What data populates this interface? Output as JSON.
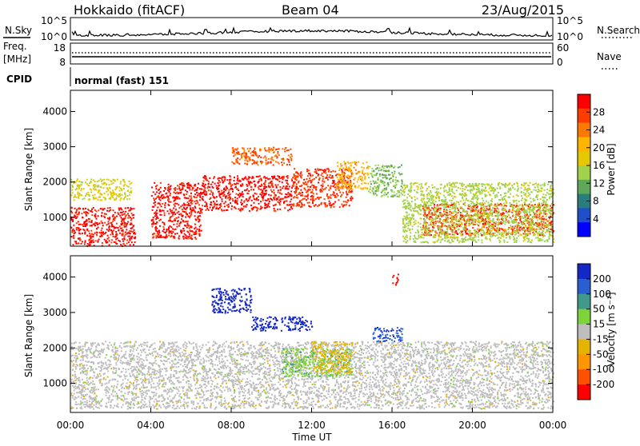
{
  "header": {
    "station": "Hokkaido (fitACF)",
    "beam": "Beam 04",
    "date": "23/Aug/2015"
  },
  "top_panels": {
    "nsky_label": "N.Sky",
    "nsky_ticks": [
      "10^5",
      "10^0"
    ],
    "nsearch_label": "N.Search",
    "nsearch_ticks": [
      "10^5",
      "10^0"
    ],
    "freq_label": "Freq.",
    "freq_unit": "[MHz]",
    "freq_ticks": [
      "18",
      "8"
    ],
    "nave_label": "Nave",
    "nave_ticks": [
      "60",
      "0"
    ],
    "cpid_label": "CPID",
    "cpid_value": "normal (fast) 151"
  },
  "power_colorbar": {
    "label": "Power [dB]",
    "ticks": [
      "28",
      "24",
      "20",
      "16",
      "12",
      "8",
      "4"
    ],
    "colors": [
      "#ff0000",
      "#ff3c00",
      "#ff7800",
      "#ffb400",
      "#e6c800",
      "#a0d24e",
      "#5fa85a",
      "#2a7d7d",
      "#1e4fc8",
      "#0000ff"
    ]
  },
  "velocity_colorbar": {
    "label": "Velocity [m s⁻¹]",
    "ticks": [
      "200",
      "100",
      "50",
      "15",
      "-15",
      "-50",
      "-100",
      "-200"
    ],
    "colors": [
      "#1428c8",
      "#2a5fd0",
      "#3f9a8c",
      "#7ed23a",
      "#bebebe",
      "#e6b400",
      "#ff9600",
      "#ff5000",
      "#ff0000"
    ]
  },
  "axes": {
    "xlabel": "Time UT",
    "xticks": [
      "00:00",
      "04:00",
      "08:00",
      "12:00",
      "16:00",
      "20:00",
      "00:00"
    ],
    "ylabel": "Slant Range [km]",
    "yticks": [
      "4000",
      "3000",
      "2000",
      "1000"
    ]
  },
  "chart_data": [
    {
      "type": "heatmap",
      "title": "Power",
      "xlabel": "Time UT",
      "ylabel": "Slant Range [km]",
      "xlim": [
        0,
        24
      ],
      "ylim": [
        180,
        4600
      ],
      "colorbar_label": "Power [dB]",
      "colorbar_range": [
        0,
        30
      ],
      "regions": [
        {
          "t0": 0.0,
          "t1": 3.2,
          "r0": 200,
          "r1": 1300,
          "value": 28
        },
        {
          "t0": 0.0,
          "t1": 3.0,
          "r0": 1500,
          "r1": 2100,
          "value": 16
        },
        {
          "t0": 4.0,
          "t1": 6.5,
          "r0": 400,
          "r1": 2000,
          "value": 28
        },
        {
          "t0": 6.5,
          "t1": 11.0,
          "r0": 1200,
          "r1": 2200,
          "value": 28
        },
        {
          "t0": 11.0,
          "t1": 14.0,
          "r0": 1300,
          "r1": 2400,
          "value": 26
        },
        {
          "t0": 8.0,
          "t1": 11.0,
          "r0": 2500,
          "r1": 3000,
          "value": 24
        },
        {
          "t0": 13.2,
          "t1": 14.8,
          "r0": 1800,
          "r1": 2600,
          "value": 20
        },
        {
          "t0": 14.8,
          "t1": 16.5,
          "r0": 1600,
          "r1": 2500,
          "value": 12
        },
        {
          "t0": 17.5,
          "t1": 24.0,
          "r0": 500,
          "r1": 1400,
          "value": 26
        },
        {
          "t0": 16.5,
          "t1": 24.0,
          "r0": 300,
          "r1": 2000,
          "value": 14
        }
      ]
    },
    {
      "type": "heatmap",
      "title": "Velocity",
      "xlabel": "Time UT",
      "ylabel": "Slant Range [km]",
      "xlim": [
        0,
        24
      ],
      "ylim": [
        180,
        4600
      ],
      "colorbar_label": "Velocity [m s⁻¹]",
      "colorbar_range": [
        -200,
        200
      ],
      "regions": [
        {
          "t0": 0.0,
          "t1": 24.0,
          "r0": 300,
          "r1": 2200,
          "value": 0
        },
        {
          "t0": 7.0,
          "t1": 9.0,
          "r0": 3000,
          "r1": 3700,
          "value": 200
        },
        {
          "t0": 9.0,
          "t1": 12.0,
          "r0": 2500,
          "r1": 2900,
          "value": 200
        },
        {
          "t0": 10.5,
          "t1": 14.0,
          "r0": 1200,
          "r1": 2000,
          "value": 50
        },
        {
          "t0": 12.0,
          "t1": 14.0,
          "r0": 1300,
          "r1": 2200,
          "value": -40
        },
        {
          "t0": 16.0,
          "t1": 16.3,
          "r0": 3800,
          "r1": 4100,
          "value": -200
        },
        {
          "t0": 15.0,
          "t1": 16.5,
          "r0": 2200,
          "r1": 2600,
          "value": 150
        }
      ]
    }
  ]
}
